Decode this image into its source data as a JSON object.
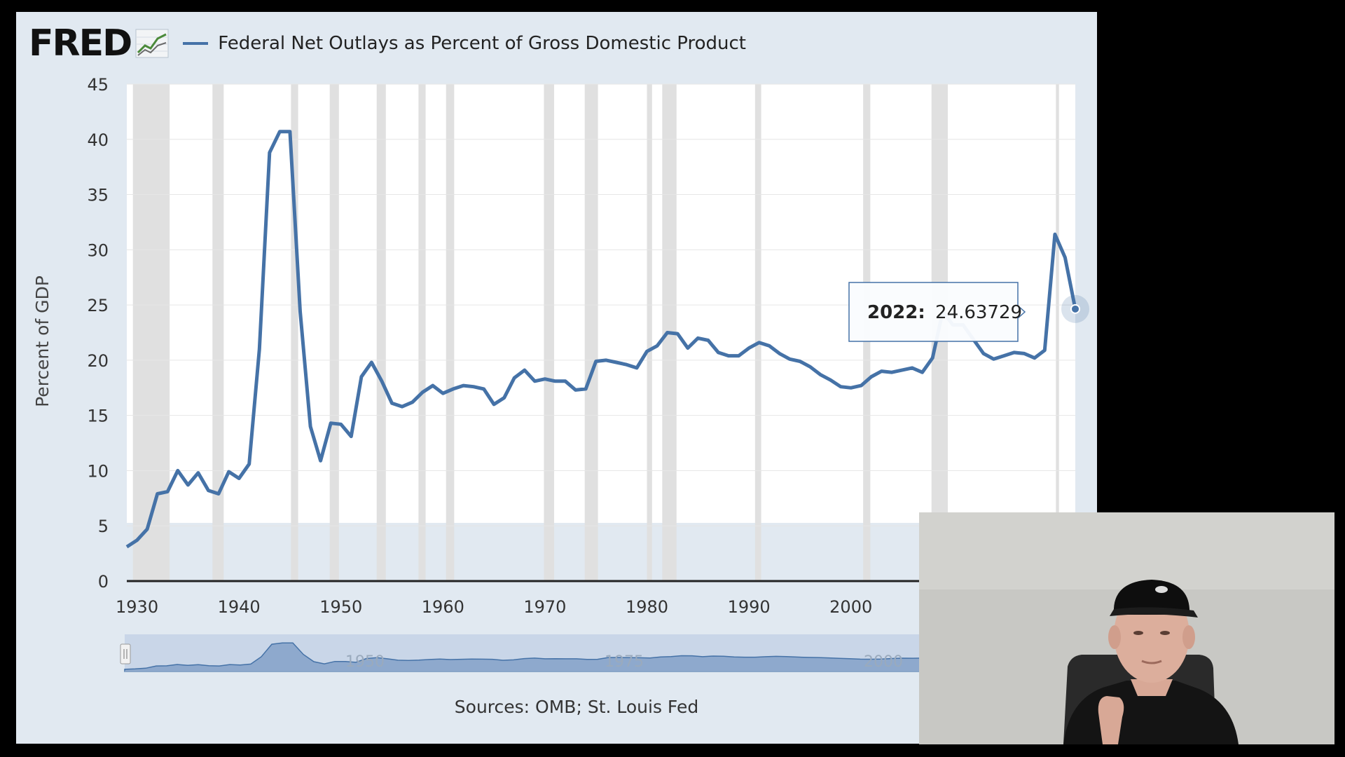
{
  "header": {
    "logo_text": "FRED",
    "logo_icon": "line-chart-icon",
    "series_name": "Federal Net Outlays as Percent of Gross Domestic Product"
  },
  "sources": "Sources: OMB; St. Louis Fed",
  "tooltip": {
    "label": "2022:",
    "value": "24.63729"
  },
  "colors": {
    "series": "#4572a7",
    "recession": "#e0e0e0",
    "background": "#e1e9f1",
    "plot": "#ffffff"
  },
  "navigator": {
    "labels": [
      "1950",
      "1975",
      "2000"
    ]
  },
  "chart_data": {
    "type": "line",
    "title": "Federal Net Outlays as Percent of Gross Domestic Product",
    "xlabel": "",
    "ylabel": "Percent of GDP",
    "xlim": [
      1929,
      2022
    ],
    "ylim": [
      0,
      45
    ],
    "x_ticks": [
      1930,
      1940,
      1950,
      1960,
      1970,
      1980,
      1990,
      2000
    ],
    "y_ticks": [
      0,
      5,
      10,
      15,
      20,
      25,
      30,
      35,
      40,
      45
    ],
    "grid": true,
    "legend": "top-left",
    "recessions": [
      [
        1929.6,
        1933.2
      ],
      [
        1937.4,
        1938.5
      ],
      [
        1945.1,
        1945.8
      ],
      [
        1948.9,
        1949.8
      ],
      [
        1953.5,
        1954.4
      ],
      [
        1957.6,
        1958.3
      ],
      [
        1960.3,
        1961.1
      ],
      [
        1969.9,
        1970.9
      ],
      [
        1973.9,
        1975.2
      ],
      [
        1980.0,
        1980.5
      ],
      [
        1981.5,
        1982.9
      ],
      [
        1990.6,
        1991.2
      ],
      [
        2001.2,
        2001.9
      ],
      [
        2007.9,
        2009.5
      ],
      [
        2020.1,
        2020.4
      ]
    ],
    "series": [
      {
        "name": "Federal Net Outlays as Percent of Gross Domestic Product",
        "x": [
          1929,
          1930,
          1931,
          1932,
          1933,
          1934,
          1935,
          1936,
          1937,
          1938,
          1939,
          1940,
          1941,
          1942,
          1943,
          1944,
          1945,
          1946,
          1947,
          1948,
          1949,
          1950,
          1951,
          1952,
          1953,
          1954,
          1955,
          1956,
          1957,
          1958,
          1959,
          1960,
          1961,
          1962,
          1963,
          1964,
          1965,
          1966,
          1967,
          1968,
          1969,
          1970,
          1971,
          1972,
          1973,
          1974,
          1975,
          1976,
          1977,
          1978,
          1979,
          1980,
          1981,
          1982,
          1983,
          1984,
          1985,
          1986,
          1987,
          1988,
          1989,
          1990,
          1991,
          1992,
          1993,
          1994,
          1995,
          1996,
          1997,
          1998,
          1999,
          2000,
          2001,
          2002,
          2003,
          2004,
          2005,
          2006,
          2007,
          2008,
          2009,
          2010,
          2011,
          2012,
          2013,
          2014,
          2015,
          2016,
          2017,
          2018,
          2019,
          2020,
          2021,
          2022
        ],
        "y": [
          3.1,
          3.7,
          4.7,
          7.9,
          8.1,
          10.0,
          8.7,
          9.8,
          8.2,
          7.9,
          9.9,
          9.3,
          10.6,
          21.0,
          38.8,
          40.7,
          40.7,
          24.4,
          14.0,
          10.9,
          14.3,
          14.2,
          13.1,
          18.5,
          19.8,
          18.1,
          16.1,
          15.8,
          16.2,
          17.1,
          17.7,
          17.0,
          17.4,
          17.7,
          17.6,
          17.4,
          16.0,
          16.6,
          18.4,
          19.1,
          18.1,
          18.3,
          18.1,
          18.1,
          17.3,
          17.4,
          19.9,
          20.0,
          19.8,
          19.6,
          19.3,
          20.8,
          21.3,
          22.5,
          22.4,
          21.1,
          22.0,
          21.8,
          20.7,
          20.4,
          20.4,
          21.1,
          21.6,
          21.3,
          20.6,
          20.1,
          19.9,
          19.4,
          18.7,
          18.2,
          17.6,
          17.5,
          17.7,
          18.5,
          19.0,
          18.9,
          19.1,
          19.3,
          18.9,
          20.2,
          24.4,
          23.2,
          23.2,
          21.9,
          20.6,
          20.1,
          20.4,
          20.7,
          20.6,
          20.2,
          20.9,
          31.4,
          29.3,
          24.63729
        ]
      }
    ]
  }
}
